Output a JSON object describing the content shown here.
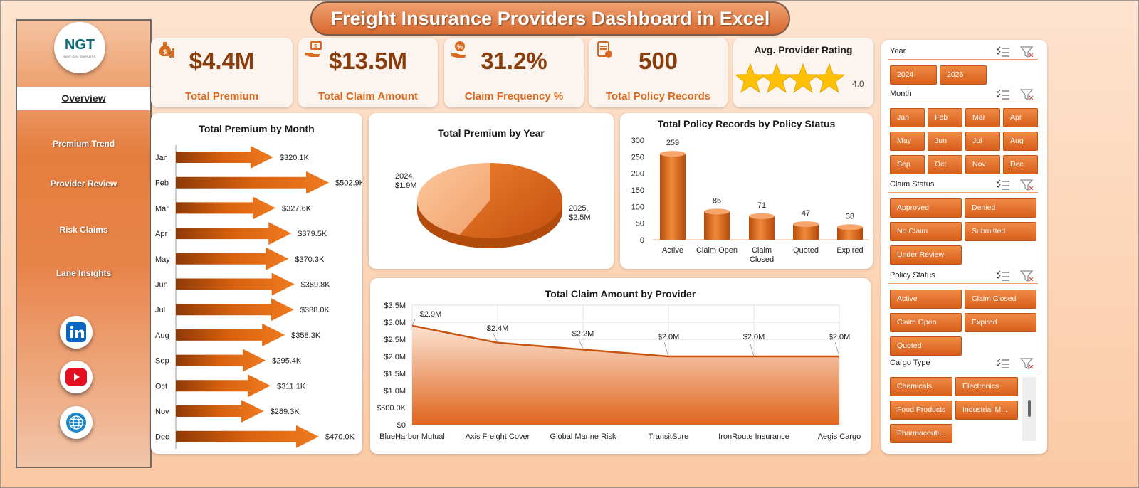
{
  "title": "Freight Insurance Providers Dashboard in Excel",
  "logo": {
    "text_main": "NGT",
    "text_sub": "NEXT GEN TEMPLATES"
  },
  "nav": {
    "active": "Overview",
    "items": [
      "Premium Trend",
      "Provider Review",
      "Risk Claims",
      "Lane Insights"
    ]
  },
  "social": [
    "linkedin-icon",
    "youtube-icon",
    "globe-icon"
  ],
  "kpis": [
    {
      "value": "$4.4M",
      "label": "Total Premium",
      "icon": "money-bag-chart-icon"
    },
    {
      "value": "$13.5M",
      "label": "Total Claim Amount",
      "icon": "hand-money-icon"
    },
    {
      "value": "31.2%",
      "label": "Claim Frequency %",
      "icon": "percent-hand-icon"
    },
    {
      "value": "500",
      "label": "Total Policy Records",
      "icon": "document-icon"
    }
  ],
  "rating": {
    "title": "Avg. Provider Rating",
    "value": "4.0",
    "stars": 4
  },
  "colors": {
    "accent": "#e0651e",
    "dark_orange": "#8a3d0a",
    "light_orange": "#f5b385"
  },
  "chart_data": [
    {
      "type": "bar",
      "title": "Total Premium by Month",
      "orientation": "horizontal",
      "categories": [
        "Jan",
        "Feb",
        "Mar",
        "Apr",
        "May",
        "Jun",
        "Jul",
        "Aug",
        "Sep",
        "Oct",
        "Nov",
        "Dec"
      ],
      "values": [
        320.1,
        502.9,
        327.6,
        379.5,
        370.3,
        389.8,
        388.0,
        358.3,
        295.4,
        311.1,
        289.3,
        470.0
      ],
      "labels": [
        "$320.1K",
        "$502.9K",
        "$327.6K",
        "$379.5K",
        "$370.3K",
        "$389.8K",
        "$388.0K",
        "$358.3K",
        "$295.4K",
        "$311.1K",
        "$289.3K",
        "$470.0K"
      ]
    },
    {
      "type": "pie",
      "title": "Total Premium by Year",
      "slices": [
        {
          "label": "2024",
          "value_label": "$1.9M",
          "value": 1.9
        },
        {
          "label": "2025",
          "value_label": "$2.5M",
          "value": 2.5
        }
      ]
    },
    {
      "type": "bar",
      "title": "Total Policy Records by Policy Status",
      "categories": [
        "Active",
        "Claim Open",
        "Claim Closed",
        "Quoted",
        "Expired"
      ],
      "values": [
        259,
        85,
        71,
        47,
        38
      ],
      "ylim": [
        0,
        300
      ],
      "yticks": [
        "0",
        "50",
        "100",
        "150",
        "200",
        "250",
        "300"
      ]
    },
    {
      "type": "area",
      "title": "Total Claim Amount by Provider",
      "categories": [
        "BlueHarbor Mutual",
        "Axis Freight Cover",
        "Global Marine Risk",
        "TransitSure",
        "IronRoute Insurance",
        "Aegis Cargo"
      ],
      "values": [
        2.9,
        2.4,
        2.2,
        2.0,
        2.0,
        2.0
      ],
      "labels": [
        "$2.9M",
        "$2.4M",
        "$2.2M",
        "$2.0M",
        "$2.0M",
        "$2.0M"
      ],
      "ylim": [
        0,
        3.5
      ],
      "yticks": [
        "$0",
        "$500.0K",
        "$1.0M",
        "$1.5M",
        "$2.0M",
        "$2.5M",
        "$3.0M",
        "$3.5M"
      ],
      "grid": true
    }
  ],
  "slicers": [
    {
      "title": "Year",
      "items": [
        "2024",
        "2025"
      ]
    },
    {
      "title": "Month",
      "items": [
        "Jan",
        "Feb",
        "Mar",
        "Apr",
        "May",
        "Jun",
        "Jul",
        "Aug",
        "Sep",
        "Oct",
        "Nov",
        "Dec"
      ]
    },
    {
      "title": "Claim Status",
      "items": [
        "Approved",
        "Denied",
        "No Claim",
        "Submitted",
        "Under Review"
      ]
    },
    {
      "title": "Policy Status",
      "items": [
        "Active",
        "Claim Closed",
        "Claim Open",
        "Expired",
        "Quoted"
      ]
    },
    {
      "title": "Cargo Type",
      "items": [
        "Chemicals",
        "Electronics",
        "Food Products",
        "Industrial M...",
        "Pharmaceuti..."
      ]
    }
  ]
}
